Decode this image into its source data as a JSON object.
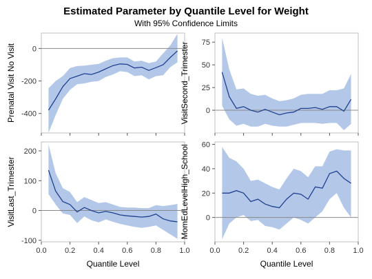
{
  "header": {
    "title": "Estimated Parameter by Quantile Level for Weight",
    "subtitle": "With 95% Confidence Limits"
  },
  "colors": {
    "band": "#b3c8e8",
    "line": "#1f3f8f",
    "ref": "#888888",
    "frame": "#bfbfbf",
    "grid": "#e6e6e6"
  },
  "chart_data": [
    {
      "type": "line",
      "ylabel": "Prenatal Visit No Visit",
      "xlabel": "",
      "xlim": [
        0,
        1
      ],
      "ylim": [
        -520,
        95
      ],
      "xticks": [
        "0.0",
        "0.2",
        "0.4",
        "0.6",
        "0.8",
        "1.0"
      ],
      "yticks": [
        -400,
        -200,
        0
      ],
      "x": [
        0.05,
        0.1,
        0.15,
        0.2,
        0.25,
        0.3,
        0.35,
        0.4,
        0.45,
        0.5,
        0.55,
        0.6,
        0.65,
        0.7,
        0.75,
        0.8,
        0.85,
        0.9,
        0.95
      ],
      "estimate": [
        -380,
        -310,
        -235,
        -185,
        -170,
        -155,
        -160,
        -145,
        -125,
        -105,
        -95,
        -98,
        -120,
        -115,
        -135,
        -118,
        -100,
        -55,
        -15
      ],
      "lower": [
        -520,
        -410,
        -310,
        -255,
        -220,
        -215,
        -205,
        -200,
        -175,
        -160,
        -140,
        -145,
        -170,
        -165,
        -190,
        -170,
        -165,
        -115,
        -85
      ],
      "upper": [
        -245,
        -200,
        -170,
        -120,
        -108,
        -105,
        -100,
        -95,
        -75,
        -60,
        -55,
        -55,
        -80,
        -75,
        -90,
        -80,
        -30,
        20,
        90
      ]
    },
    {
      "type": "line",
      "ylabel": "VisitSecond_Trimester",
      "xlabel": "",
      "xlim": [
        0,
        1
      ],
      "ylim": [
        -25,
        85
      ],
      "xticks": [
        "0.0",
        "0.2",
        "0.4",
        "0.6",
        "0.8",
        "1.0"
      ],
      "yticks": [
        0,
        25,
        50,
        75
      ],
      "x": [
        0.05,
        0.1,
        0.15,
        0.2,
        0.25,
        0.3,
        0.35,
        0.4,
        0.45,
        0.5,
        0.55,
        0.6,
        0.65,
        0.7,
        0.75,
        0.8,
        0.85,
        0.9,
        0.95
      ],
      "estimate": [
        42,
        15,
        2,
        4,
        0,
        -2,
        1,
        -2,
        -5,
        -3,
        -2,
        2,
        2,
        3,
        1,
        4,
        4,
        -1,
        12
      ],
      "lower": [
        5,
        -10,
        -17,
        -15,
        -18,
        -18,
        -15,
        -17,
        -18,
        -18,
        -16,
        -14,
        -14,
        -14,
        -15,
        -14,
        -14,
        -22,
        -15
      ],
      "upper": [
        80,
        45,
        23,
        24,
        18,
        16,
        17,
        13,
        10,
        11,
        13,
        17,
        18,
        18,
        18,
        22,
        22,
        24,
        40
      ]
    },
    {
      "type": "line",
      "ylabel": "VisitLast_Trimester",
      "xlabel": "Quantile Level",
      "xlim": [
        0,
        1
      ],
      "ylim": [
        -105,
        230
      ],
      "xticks": [
        "0.0",
        "0.2",
        "0.4",
        "0.6",
        "0.8",
        "1.0"
      ],
      "yticks": [
        -100,
        0,
        100,
        200
      ],
      "x": [
        0.05,
        0.1,
        0.15,
        0.2,
        0.25,
        0.3,
        0.35,
        0.4,
        0.45,
        0.5,
        0.55,
        0.6,
        0.65,
        0.7,
        0.75,
        0.8,
        0.85,
        0.9,
        0.95
      ],
      "estimate": [
        135,
        65,
        30,
        20,
        -5,
        10,
        0,
        -8,
        -3,
        -8,
        -15,
        -18,
        -20,
        -22,
        -20,
        -12,
        -28,
        -35,
        -38
      ],
      "lower": [
        55,
        20,
        -10,
        -15,
        -42,
        -20,
        -33,
        -40,
        -30,
        -38,
        -45,
        -50,
        -55,
        -58,
        -55,
        -50,
        -65,
        -80,
        -95
      ],
      "upper": [
        222,
        125,
        75,
        62,
        28,
        45,
        35,
        25,
        28,
        20,
        12,
        10,
        10,
        8,
        8,
        18,
        15,
        18,
        22
      ]
    },
    {
      "type": "line",
      "ylabel": "MomEdLevelHigh_School",
      "xlabel": "Quantile Level",
      "xlim": [
        0,
        1
      ],
      "ylim": [
        -20,
        62
      ],
      "xticks": [
        "0.0",
        "0.2",
        "0.4",
        "0.6",
        "0.8",
        "1.0"
      ],
      "yticks": [
        0,
        20,
        40,
        60
      ],
      "x": [
        0.05,
        0.1,
        0.15,
        0.2,
        0.25,
        0.3,
        0.35,
        0.4,
        0.45,
        0.5,
        0.55,
        0.6,
        0.65,
        0.7,
        0.75,
        0.8,
        0.85,
        0.9,
        0.95
      ],
      "estimate": [
        20,
        20,
        22,
        20,
        13,
        15,
        11,
        9,
        8,
        15,
        20,
        19,
        15,
        25,
        24,
        36,
        38,
        32,
        28
      ],
      "lower": [
        -18,
        -5,
        0,
        2,
        -3,
        -2,
        -7,
        -8,
        -10,
        -5,
        0,
        -2,
        -5,
        0,
        5,
        15,
        20,
        8,
        0
      ],
      "upper": [
        58,
        49,
        46,
        40,
        30,
        31,
        28,
        25,
        23,
        32,
        40,
        38,
        33,
        42,
        42,
        54,
        56,
        55,
        55
      ]
    }
  ]
}
